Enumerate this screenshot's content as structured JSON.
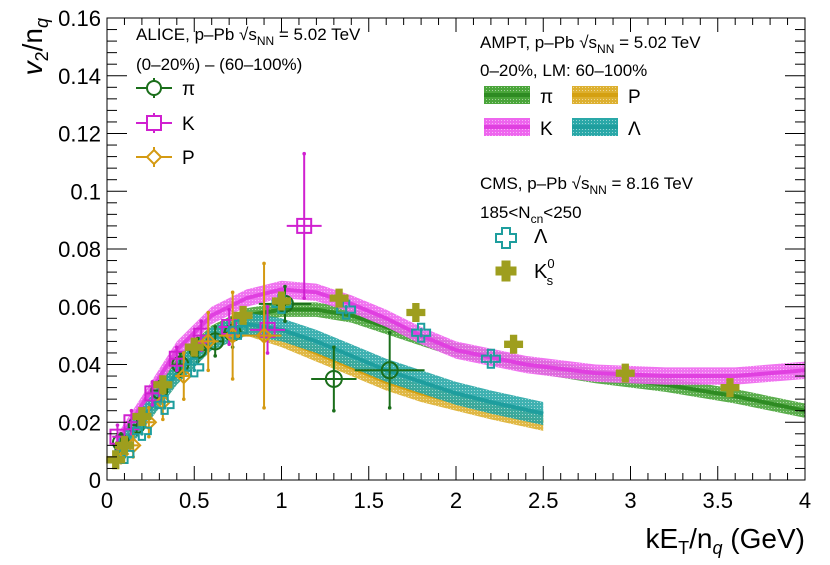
{
  "chart_data": {
    "type": "scatter",
    "xlabel": "kE_T/n_q (GeV)",
    "ylabel": "v_2/n_q",
    "xlim": [
      0,
      4
    ],
    "ylim": [
      0,
      0.16
    ],
    "x_ticks": [
      "0",
      "0.5",
      "1",
      "1.5",
      "2",
      "2.5",
      "3",
      "3.5",
      "4"
    ],
    "y_ticks": [
      "0",
      "0.02",
      "0.04",
      "0.06",
      "0.08",
      "0.1",
      "0.12",
      "0.14",
      "0.16"
    ],
    "grid": false,
    "legend": {
      "alice_title": "ALICE, p–Pb √s",
      "alice_sub": "NN",
      "alice_energy": " = 5.02 TeV",
      "alice_cent": "(0–20%) – (60–100%)",
      "alice_pi": "π",
      "alice_k": "K",
      "alice_p": "P",
      "ampt_title": "AMPT, p–Pb √s",
      "ampt_sub": "NN",
      "ampt_energy": " = 5.02 TeV",
      "ampt_cent": "0–20%, LM: 60–100%",
      "ampt_pi": "π",
      "ampt_p": "P",
      "ampt_k": "K",
      "ampt_lambda": "Λ",
      "cms_title": "CMS, p–Pb √s",
      "cms_sub": "NN",
      "cms_energy": " = 8.16 TeV",
      "cms_mult_a": "185<N",
      "cms_mult_sub": "cn",
      "cms_mult_b": "<250",
      "cms_lambda": "Λ",
      "cms_k0s": "K",
      "cms_k0s_sup": "0",
      "cms_k0s_sub": "s"
    },
    "colors": {
      "pi": "#2e8b22",
      "K": "#e040e0",
      "P": "#d4a012",
      "Lambda": "#1e9e9e",
      "K0s": "#9e9e1e",
      "alice_pi": "#1a6e1a",
      "alice_K": "#d020d0",
      "alice_P": "#d49a12"
    },
    "series": [
      {
        "name": "ALICE π",
        "marker": "open-circle",
        "color": "alice_pi",
        "points": [
          {
            "x": 0.08,
            "y": 0.013,
            "ex": 0.03,
            "ey": 0.003
          },
          {
            "x": 0.17,
            "y": 0.019,
            "ex": 0.03,
            "ey": 0.003
          },
          {
            "x": 0.3,
            "y": 0.031,
            "ex": 0.04,
            "ey": 0.003
          },
          {
            "x": 0.42,
            "y": 0.04,
            "ex": 0.04,
            "ey": 0.004
          },
          {
            "x": 0.52,
            "y": 0.045,
            "ex": 0.05,
            "ey": 0.004
          },
          {
            "x": 0.62,
            "y": 0.048,
            "ex": 0.05,
            "ey": 0.005
          },
          {
            "x": 0.72,
            "y": 0.051,
            "ex": 0.06,
            "ey": 0.005
          },
          {
            "x": 1.02,
            "y": 0.061,
            "ex": 0.15,
            "ey": 0.006
          },
          {
            "x": 1.3,
            "y": 0.035,
            "ex": 0.13,
            "ey": 0.011
          },
          {
            "x": 1.62,
            "y": 0.038,
            "ex": 0.2,
            "ey": 0.013
          }
        ]
      },
      {
        "name": "ALICE K",
        "marker": "open-square",
        "color": "alice_K",
        "points": [
          {
            "x": 0.06,
            "y": 0.015,
            "ex": 0.03,
            "ey": 0.004
          },
          {
            "x": 0.14,
            "y": 0.02,
            "ex": 0.03,
            "ey": 0.004
          },
          {
            "x": 0.26,
            "y": 0.03,
            "ex": 0.04,
            "ey": 0.004
          },
          {
            "x": 0.4,
            "y": 0.042,
            "ex": 0.04,
            "ey": 0.004
          },
          {
            "x": 0.54,
            "y": 0.05,
            "ex": 0.05,
            "ey": 0.005
          },
          {
            "x": 0.7,
            "y": 0.053,
            "ex": 0.06,
            "ey": 0.006
          },
          {
            "x": 0.92,
            "y": 0.052,
            "ex": 0.1,
            "ey": 0.008
          },
          {
            "x": 1.13,
            "y": 0.088,
            "ex": 0.1,
            "ey": 0.025
          }
        ]
      },
      {
        "name": "ALICE P",
        "marker": "open-diamond",
        "color": "alice_P",
        "points": [
          {
            "x": 0.08,
            "y": 0.009,
            "ex": 0.03,
            "ey": 0.003
          },
          {
            "x": 0.15,
            "y": 0.012,
            "ex": 0.03,
            "ey": 0.004
          },
          {
            "x": 0.24,
            "y": 0.02,
            "ex": 0.03,
            "ey": 0.005
          },
          {
            "x": 0.32,
            "y": 0.027,
            "ex": 0.04,
            "ey": 0.006
          },
          {
            "x": 0.44,
            "y": 0.036,
            "ex": 0.05,
            "ey": 0.008
          },
          {
            "x": 0.58,
            "y": 0.048,
            "ex": 0.06,
            "ey": 0.01
          },
          {
            "x": 0.72,
            "y": 0.05,
            "ex": 0.08,
            "ey": 0.015
          },
          {
            "x": 0.9,
            "y": 0.05,
            "ex": 0.1,
            "ey": 0.025
          }
        ]
      },
      {
        "name": "CMS Λ",
        "marker": "open-cross",
        "color": "Lambda",
        "points": [
          {
            "x": 0.1,
            "y": 0.009,
            "ey": 0.001
          },
          {
            "x": 0.2,
            "y": 0.017,
            "ey": 0.001
          },
          {
            "x": 0.33,
            "y": 0.026,
            "ey": 0.001
          },
          {
            "x": 0.5,
            "y": 0.039,
            "ey": 0.001
          },
          {
            "x": 0.75,
            "y": 0.052,
            "ey": 0.001
          },
          {
            "x": 1.0,
            "y": 0.061,
            "ey": 0.001
          },
          {
            "x": 1.37,
            "y": 0.059,
            "ey": 0.001
          },
          {
            "x": 1.8,
            "y": 0.051,
            "ey": 0.001
          },
          {
            "x": 2.2,
            "y": 0.042,
            "ey": 0.001
          }
        ]
      },
      {
        "name": "CMS K0s",
        "marker": "filled-cross",
        "color": "K0s",
        "points": [
          {
            "x": 0.05,
            "y": 0.007,
            "ey": 0.001
          },
          {
            "x": 0.1,
            "y": 0.012,
            "ey": 0.001
          },
          {
            "x": 0.2,
            "y": 0.022,
            "ey": 0.001
          },
          {
            "x": 0.32,
            "y": 0.033,
            "ey": 0.001
          },
          {
            "x": 0.5,
            "y": 0.046,
            "ey": 0.001
          },
          {
            "x": 0.78,
            "y": 0.057,
            "ey": 0.001
          },
          {
            "x": 1.0,
            "y": 0.062,
            "ey": 0.002
          },
          {
            "x": 1.33,
            "y": 0.063,
            "ey": 0.002
          },
          {
            "x": 1.77,
            "y": 0.058,
            "ey": 0.002
          },
          {
            "x": 2.33,
            "y": 0.047,
            "ey": 0.002
          },
          {
            "x": 2.97,
            "y": 0.037,
            "ey": 0.002
          },
          {
            "x": 3.57,
            "y": 0.032,
            "ey": 0.002
          }
        ]
      }
    ],
    "bands": [
      {
        "name": "AMPT π",
        "color": "pi",
        "x": [
          0.05,
          0.2,
          0.4,
          0.6,
          0.8,
          1.0,
          1.2,
          1.4,
          1.6,
          1.8,
          2.0,
          2.4,
          2.8,
          3.2,
          3.6,
          4.0
        ],
        "y": [
          0.01,
          0.024,
          0.04,
          0.051,
          0.057,
          0.059,
          0.059,
          0.057,
          0.053,
          0.049,
          0.045,
          0.04,
          0.036,
          0.033,
          0.029,
          0.024
        ],
        "w": 0.0025
      },
      {
        "name": "AMPT K",
        "color": "K",
        "x": [
          0.05,
          0.2,
          0.4,
          0.6,
          0.8,
          1.0,
          1.2,
          1.4,
          1.6,
          1.8,
          2.0,
          2.4,
          2.8,
          3.2,
          3.6,
          4.0
        ],
        "y": [
          0.012,
          0.026,
          0.045,
          0.057,
          0.063,
          0.066,
          0.065,
          0.061,
          0.056,
          0.05,
          0.045,
          0.04,
          0.037,
          0.036,
          0.036,
          0.038
        ],
        "w": 0.003
      },
      {
        "name": "AMPT P",
        "color": "P",
        "x": [
          0.05,
          0.2,
          0.4,
          0.6,
          0.8,
          1.0,
          1.2,
          1.4,
          1.6,
          1.8,
          2.0,
          2.2,
          2.5
        ],
        "y": [
          0.008,
          0.02,
          0.036,
          0.048,
          0.053,
          0.049,
          0.044,
          0.039,
          0.034,
          0.03,
          0.027,
          0.024,
          0.02
        ],
        "w": 0.003
      },
      {
        "name": "AMPT Λ",
        "color": "Lambda",
        "x": [
          0.05,
          0.2,
          0.4,
          0.6,
          0.8,
          1.0,
          1.2,
          1.4,
          1.6,
          1.8,
          2.0,
          2.2,
          2.5
        ],
        "y": [
          0.009,
          0.021,
          0.037,
          0.049,
          0.054,
          0.052,
          0.048,
          0.043,
          0.038,
          0.034,
          0.03,
          0.027,
          0.023
        ],
        "w": 0.004
      }
    ]
  }
}
